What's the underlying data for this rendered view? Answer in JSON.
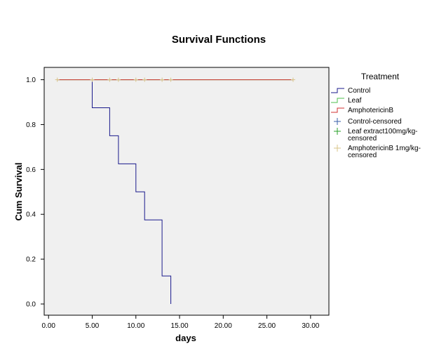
{
  "chart_data": {
    "type": "line",
    "title": "Survival Functions",
    "xlabel": "days",
    "ylabel": "Cum Survival",
    "xlim": [
      -0.5,
      32.1
    ],
    "ylim": [
      -0.05,
      1.055
    ],
    "x_ticks": [
      0,
      5,
      10,
      15,
      20,
      25,
      30
    ],
    "x_tick_labels": [
      "0.00",
      "5.00",
      "10.00",
      "15.00",
      "20.00",
      "25.00",
      "30.00"
    ],
    "y_ticks": [
      0,
      0.2,
      0.4,
      0.6,
      0.8,
      1.0
    ],
    "y_tick_labels": [
      "0.0",
      "0.2",
      "0.4",
      "0.6",
      "0.8",
      "1.0"
    ],
    "grid": false,
    "legend_position": "right",
    "legend": {
      "title": "Treatment",
      "entries": [
        {
          "kind": "step",
          "color": "#1a1a8c",
          "lines": [
            "Control"
          ]
        },
        {
          "kind": "step",
          "color": "#4cbf4c",
          "lines": [
            "Leaf"
          ]
        },
        {
          "kind": "step",
          "color": "#d23030",
          "lines": [
            "AmphotericinB"
          ]
        },
        {
          "kind": "cross",
          "color": "#3a5fa8",
          "lines": [
            "Control-censored"
          ]
        },
        {
          "kind": "cross",
          "color": "#2aa02a",
          "lines": [
            "Leaf extract100mg/kg-",
            "censored"
          ]
        },
        {
          "kind": "cross",
          "color": "#d8c48a",
          "lines": [
            "AmphotericinB 1mg/kg-",
            "censored"
          ]
        }
      ]
    },
    "series": [
      {
        "name": "Control",
        "color": "#1a1a8c",
        "step_points": [
          [
            5,
            1.0
          ],
          [
            5,
            0.875
          ],
          [
            7,
            0.875
          ],
          [
            7,
            0.75
          ],
          [
            8,
            0.75
          ],
          [
            8,
            0.625
          ],
          [
            10,
            0.625
          ],
          [
            10,
            0.5
          ],
          [
            11,
            0.5
          ],
          [
            11,
            0.375
          ],
          [
            13,
            0.375
          ],
          [
            13,
            0.125
          ],
          [
            14,
            0.125
          ],
          [
            14,
            0.0
          ]
        ]
      },
      {
        "name": "Leaf",
        "color": "#4cbf4c",
        "step_points": [
          [
            1,
            1.0
          ],
          [
            28,
            1.0
          ]
        ]
      },
      {
        "name": "AmphotericinB",
        "color": "#d23030",
        "step_points": [
          [
            1,
            1.0
          ],
          [
            28,
            1.0
          ]
        ]
      }
    ],
    "censored": {
      "color": "#d8c48a",
      "x": [
        1,
        5,
        7,
        8,
        10,
        11,
        13,
        14,
        28
      ],
      "y": 1.0
    }
  }
}
